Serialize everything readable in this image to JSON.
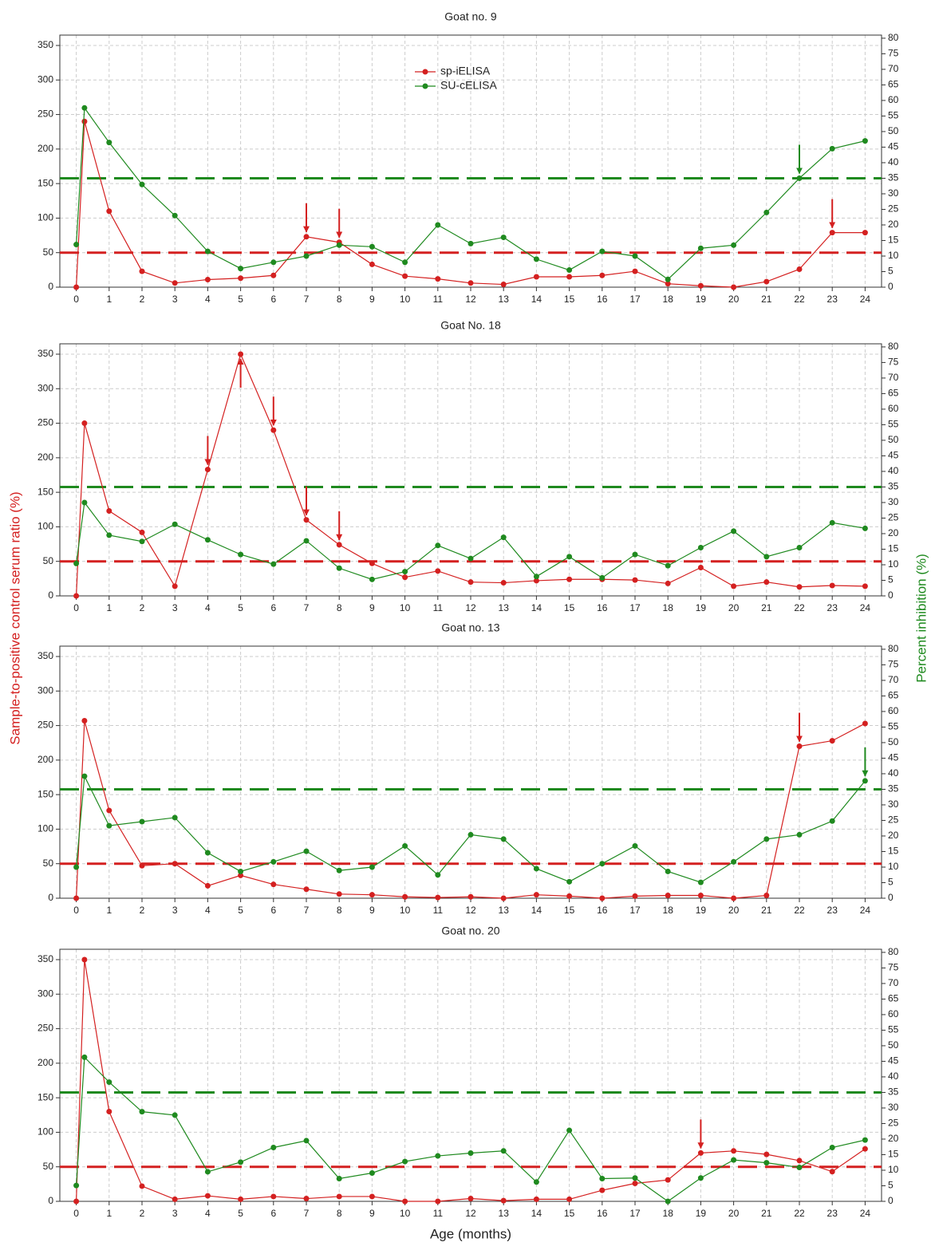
{
  "chart_data": [
    {
      "type": "line",
      "title": "Goat no. 9",
      "legend": "top-center",
      "x": [
        0,
        0.25,
        1,
        2,
        3,
        4,
        5,
        6,
        7,
        8,
        9,
        10,
        11,
        12,
        13,
        14,
        15,
        16,
        17,
        18,
        19,
        20,
        21,
        22,
        23,
        24
      ],
      "xlim": [
        -0.5,
        24.5
      ],
      "xticks": [
        0,
        1,
        2,
        3,
        4,
        5,
        6,
        7,
        8,
        9,
        10,
        11,
        12,
        13,
        14,
        15,
        16,
        17,
        18,
        19,
        20,
        21,
        22,
        23,
        24
      ],
      "ylim": [
        0,
        365
      ],
      "yticks": [
        0,
        50,
        100,
        150,
        200,
        250,
        300,
        350
      ],
      "y2lim": [
        0,
        81
      ],
      "y2ticks": [
        0,
        5,
        10,
        15,
        20,
        25,
        30,
        35,
        40,
        45,
        50,
        55,
        60,
        65,
        70,
        75,
        80
      ],
      "grid": true,
      "hlines": [
        {
          "value": 50,
          "color": "#d42020"
        },
        {
          "value": 35,
          "color": "#1f8a1f",
          "axis": "y2"
        }
      ],
      "series": [
        {
          "name": "sp-iELISA",
          "color": "#d42020",
          "values": [
            0,
            240,
            110,
            23,
            6,
            11,
            13,
            17,
            73,
            65,
            33,
            16,
            12,
            6,
            4,
            15,
            15,
            17,
            23,
            5,
            2,
            0,
            8,
            26,
            79,
            79
          ],
          "arrows": [
            7,
            8,
            23
          ]
        },
        {
          "name": "SU-cELISA",
          "color": "#1f8a1f",
          "axis": "y2",
          "values": [
            13.7,
            57.6,
            46.5,
            33,
            23,
            11.5,
            6,
            8,
            10,
            13.5,
            13,
            8,
            20,
            14,
            16,
            9,
            5.5,
            11.5,
            10,
            2.5,
            12.5,
            13.5,
            24,
            35,
            44.5,
            47
          ],
          "arrows": [
            22
          ]
        }
      ]
    },
    {
      "type": "line",
      "title": "Goat No. 18",
      "ylabel": "Sample-to-positive control serum ratio (%)",
      "y2label": "Percent inhibition (%)",
      "x": [
        0,
        0.25,
        1,
        2,
        3,
        4,
        5,
        6,
        7,
        8,
        9,
        10,
        11,
        12,
        13,
        14,
        15,
        16,
        17,
        18,
        19,
        20,
        21,
        22,
        23,
        24
      ],
      "xlim": [
        -0.5,
        24.5
      ],
      "xticks": [
        0,
        1,
        2,
        3,
        4,
        5,
        6,
        7,
        8,
        9,
        10,
        11,
        12,
        13,
        14,
        15,
        16,
        17,
        18,
        19,
        20,
        21,
        22,
        23,
        24
      ],
      "ylim": [
        0,
        365
      ],
      "yticks": [
        0,
        50,
        100,
        150,
        200,
        250,
        300,
        350
      ],
      "y2lim": [
        0,
        81
      ],
      "y2ticks": [
        0,
        5,
        10,
        15,
        20,
        25,
        30,
        35,
        40,
        45,
        50,
        55,
        60,
        65,
        70,
        75,
        80
      ],
      "grid": true,
      "hlines": [
        {
          "value": 50,
          "color": "#d42020"
        },
        {
          "value": 35,
          "color": "#1f8a1f",
          "axis": "y2"
        }
      ],
      "series": [
        {
          "color": "#d42020",
          "values": [
            0,
            250,
            123,
            92,
            14,
            183,
            350,
            240,
            110,
            74,
            47,
            27,
            36,
            20,
            19,
            22,
            24,
            24,
            23,
            18,
            41,
            14,
            20,
            13,
            15,
            14
          ],
          "arrows": [
            4,
            6,
            7,
            8
          ],
          "arrows_up": [
            5
          ]
        },
        {
          "color": "#1f8a1f",
          "axis": "y2",
          "values": [
            10.4,
            30,
            19.5,
            17.5,
            23,
            18,
            13.3,
            10.2,
            17.7,
            8.9,
            5.3,
            7.8,
            16.2,
            12,
            18.8,
            6.2,
            12.6,
            5.8,
            13.3,
            9.7,
            15.5,
            20.8,
            12.6,
            15.5,
            23.5,
            21.7
          ]
        }
      ]
    },
    {
      "type": "line",
      "title": "Goat no. 13",
      "x": [
        0,
        0.25,
        1,
        2,
        3,
        4,
        5,
        6,
        7,
        8,
        9,
        10,
        11,
        12,
        13,
        14,
        15,
        16,
        17,
        18,
        19,
        20,
        21,
        22,
        23,
        24
      ],
      "xlim": [
        -0.5,
        24.5
      ],
      "xticks": [
        0,
        1,
        2,
        3,
        4,
        5,
        6,
        7,
        8,
        9,
        10,
        11,
        12,
        13,
        14,
        15,
        16,
        17,
        18,
        19,
        20,
        21,
        22,
        23,
        24
      ],
      "ylim": [
        0,
        365
      ],
      "yticks": [
        0,
        50,
        100,
        150,
        200,
        250,
        300,
        350
      ],
      "y2lim": [
        0,
        81
      ],
      "y2ticks": [
        0,
        5,
        10,
        15,
        20,
        25,
        30,
        35,
        40,
        45,
        50,
        55,
        60,
        65,
        70,
        75,
        80
      ],
      "grid": true,
      "hlines": [
        {
          "value": 50,
          "color": "#d42020"
        },
        {
          "value": 35,
          "color": "#1f8a1f",
          "axis": "y2"
        }
      ],
      "series": [
        {
          "color": "#d42020",
          "values": [
            0,
            257,
            127,
            47,
            50,
            18,
            33,
            20,
            13,
            6,
            5,
            2,
            1,
            2,
            0,
            5,
            3,
            0,
            3,
            4,
            4,
            0,
            4,
            220,
            228,
            253
          ],
          "arrows": [
            22
          ]
        },
        {
          "color": "#1f8a1f",
          "axis": "y2",
          "values": [
            10,
            39.2,
            23.3,
            24.6,
            25.9,
            14.6,
            8.6,
            11.7,
            15.1,
            8.9,
            10,
            16.8,
            7.5,
            20.4,
            19,
            9.5,
            5.3,
            11.1,
            16.8,
            8.6,
            5.1,
            11.7,
            19,
            20.4,
            24.8,
            37.7
          ],
          "arrows": [
            24
          ]
        }
      ]
    },
    {
      "type": "line",
      "title": "Goat no. 20",
      "xlabel": "Age (months)",
      "x": [
        0,
        0.25,
        1,
        2,
        3,
        4,
        5,
        6,
        7,
        8,
        9,
        10,
        11,
        12,
        13,
        14,
        15,
        16,
        17,
        18,
        19,
        20,
        21,
        22,
        23,
        24
      ],
      "xlim": [
        -0.5,
        24.5
      ],
      "xticks": [
        0,
        1,
        2,
        3,
        4,
        5,
        6,
        7,
        8,
        9,
        10,
        11,
        12,
        13,
        14,
        15,
        16,
        17,
        18,
        19,
        20,
        21,
        22,
        23,
        24
      ],
      "ylim": [
        0,
        365
      ],
      "yticks": [
        0,
        50,
        100,
        150,
        200,
        250,
        300,
        350
      ],
      "y2lim": [
        0,
        81
      ],
      "y2ticks": [
        0,
        5,
        10,
        15,
        20,
        25,
        30,
        35,
        40,
        45,
        50,
        55,
        60,
        65,
        70,
        75,
        80
      ],
      "grid": true,
      "hlines": [
        {
          "value": 50,
          "color": "#d42020"
        },
        {
          "value": 35,
          "color": "#1f8a1f",
          "axis": "y2"
        }
      ],
      "series": [
        {
          "color": "#d42020",
          "values": [
            0,
            350,
            130,
            22,
            3,
            8,
            3,
            7,
            4,
            7,
            7,
            0,
            0,
            4,
            1,
            3,
            3,
            16,
            26,
            31,
            70,
            73,
            68,
            59,
            43,
            76
          ],
          "arrows": [
            19
          ]
        },
        {
          "color": "#1f8a1f",
          "axis": "y2",
          "values": [
            5.1,
            46.3,
            38.3,
            28.8,
            27.7,
            9.5,
            12.6,
            17.3,
            19.5,
            7.3,
            9.1,
            12.8,
            14.6,
            15.5,
            16.2,
            6.2,
            22.8,
            7.3,
            7.5,
            0,
            7.5,
            13.3,
            12.4,
            10.9,
            17.3,
            19.7
          ]
        }
      ]
    }
  ]
}
